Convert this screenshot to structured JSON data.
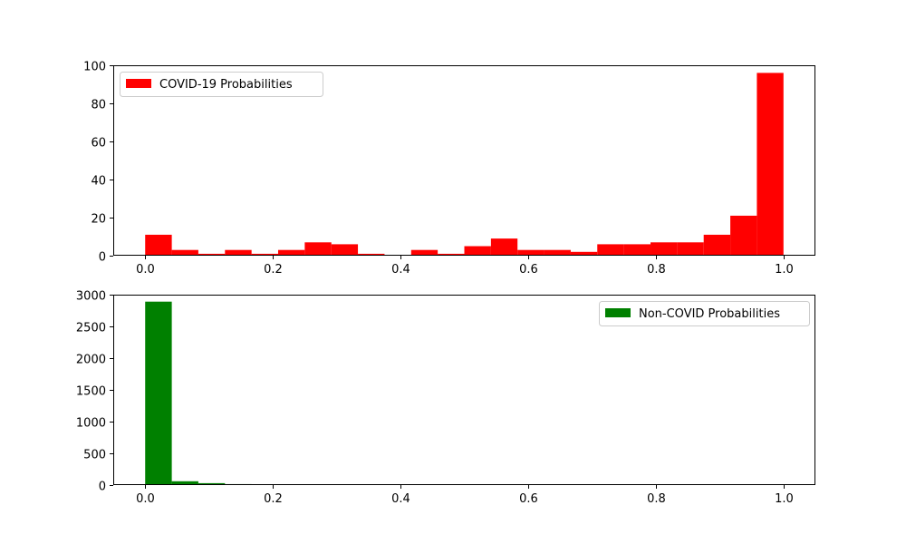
{
  "chart_data": [
    {
      "type": "bar",
      "title": "",
      "xlabel": "",
      "ylabel": "",
      "bin_edges": [
        0.0,
        0.0417,
        0.0833,
        0.125,
        0.1667,
        0.2083,
        0.25,
        0.2917,
        0.3333,
        0.375,
        0.4167,
        0.4583,
        0.5,
        0.5417,
        0.5833,
        0.625,
        0.6667,
        0.7083,
        0.75,
        0.7917,
        0.8333,
        0.875,
        0.9167,
        0.9583,
        1.0
      ],
      "series": [
        {
          "name": "COVID-19 Probabilities",
          "color": "#ff0000",
          "values": [
            11,
            3,
            1,
            3,
            1,
            3,
            7,
            6,
            1,
            0,
            3,
            1,
            5,
            9,
            3,
            3,
            2,
            6,
            6,
            7,
            7,
            11,
            21,
            96
          ]
        }
      ],
      "xlim": [
        -0.05,
        1.05
      ],
      "ylim": [
        0,
        100
      ],
      "xticks": [
        0.0,
        0.2,
        0.4,
        0.6,
        0.8,
        1.0
      ],
      "xtick_labels": [
        "0.0",
        "0.2",
        "0.4",
        "0.6",
        "0.8",
        "1.0"
      ],
      "yticks": [
        0,
        20,
        40,
        60,
        80,
        100
      ],
      "ytick_labels": [
        "0",
        "20",
        "40",
        "60",
        "80",
        "100"
      ],
      "legend_position": "top-left",
      "grid": false
    },
    {
      "type": "bar",
      "title": "",
      "xlabel": "",
      "ylabel": "",
      "bin_edges": [
        0.0,
        0.0417,
        0.0833,
        0.125,
        0.1667,
        0.2083,
        0.25,
        0.2917,
        0.3333,
        0.375,
        0.4167,
        0.4583,
        0.5,
        0.5417,
        0.5833,
        0.625,
        0.6667,
        0.7083,
        0.75,
        0.7917,
        0.8333,
        0.875,
        0.9167,
        0.9583,
        1.0
      ],
      "series": [
        {
          "name": "Non-COVID Probabilities",
          "color": "#008000",
          "values": [
            2890,
            60,
            30,
            15,
            10,
            5,
            4,
            3,
            2,
            2,
            1,
            1,
            1,
            1,
            1,
            1,
            0,
            1,
            0,
            1,
            0,
            0,
            1,
            0
          ]
        }
      ],
      "xlim": [
        -0.05,
        1.05
      ],
      "ylim": [
        0,
        3000
      ],
      "xticks": [
        0.0,
        0.2,
        0.4,
        0.6,
        0.8,
        1.0
      ],
      "xtick_labels": [
        "0.0",
        "0.2",
        "0.4",
        "0.6",
        "0.8",
        "1.0"
      ],
      "yticks": [
        0,
        500,
        1000,
        1500,
        2000,
        2500,
        3000
      ],
      "ytick_labels": [
        "0",
        "500",
        "1000",
        "1500",
        "2000",
        "2500",
        "3000"
      ],
      "legend_position": "top-right",
      "grid": false
    }
  ]
}
